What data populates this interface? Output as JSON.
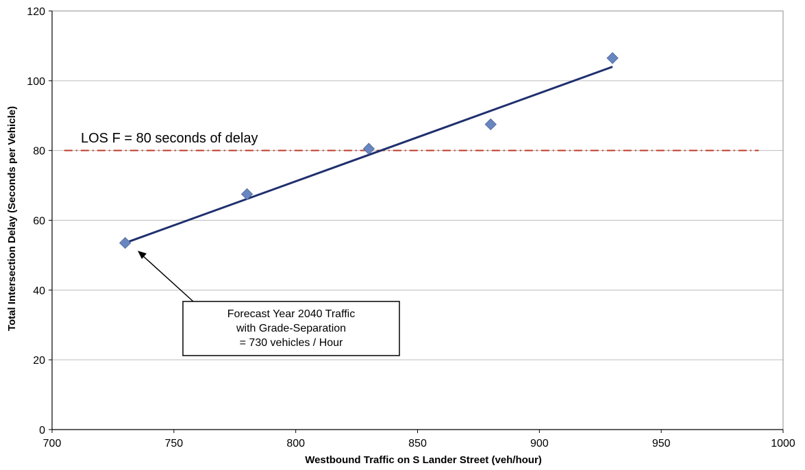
{
  "chart_data": {
    "type": "scatter",
    "title": "",
    "xlabel": "Westbound Traffic on S Lander Street (veh/hour)",
    "ylabel": "Total Intersection Delay (Seconds per Vehicle)",
    "xlim": [
      700,
      1000
    ],
    "ylim": [
      0,
      120
    ],
    "x_ticks": [
      "700",
      "750",
      "800",
      "850",
      "900",
      "950",
      "1000"
    ],
    "y_ticks": [
      "0",
      "20",
      "40",
      "60",
      "80",
      "100",
      "120"
    ],
    "grid": "horizontal",
    "colors": {
      "points": "#6a86c0",
      "trendline": "#1f2f6e",
      "threshold": "#c0392b",
      "grid": "#bdbdbd"
    },
    "series": [
      {
        "values": [
          {
            "x": 730,
            "y": 53.5
          },
          {
            "x": 780,
            "y": 67.5
          },
          {
            "x": 830,
            "y": 80.5
          },
          {
            "x": 880,
            "y": 87.5
          },
          {
            "x": 930,
            "y": 106.5
          }
        ]
      }
    ],
    "trendline": {
      "from": {
        "x": 730,
        "y": 53.5
      },
      "to": {
        "x": 930,
        "y": 104.0
      }
    },
    "threshold": {
      "y": 80,
      "x_from": 705,
      "x_to": 990,
      "label": "LOS F = 80 seconds of delay"
    },
    "callout": {
      "lines": [
        "Forecast Year 2040 Traffic",
        "with Grade-Separation",
        "= 730 vehicles / Hour"
      ],
      "points_to": {
        "x": 730,
        "y": 53.5
      }
    }
  }
}
